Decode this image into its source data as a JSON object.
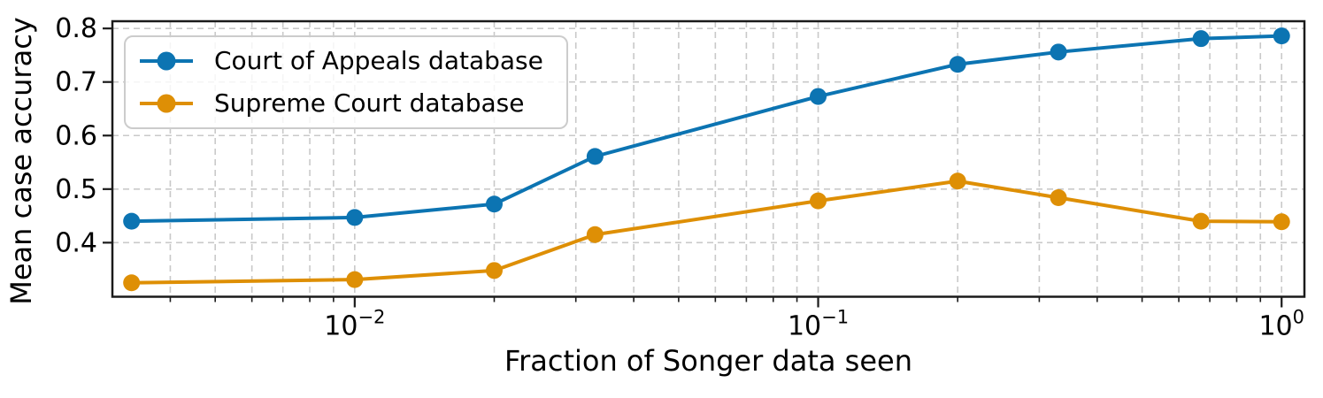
{
  "chart_data": {
    "type": "line",
    "title": "",
    "xlabel": "Fraction of Songer data seen",
    "ylabel": "Mean case accuracy",
    "x_scale": "log",
    "xlim": [
      0.003,
      1.12
    ],
    "ylim": [
      0.299,
      0.8135
    ],
    "grid": "both",
    "grid_color": "#c9c9c9",
    "axis_color": "#1a1a1a",
    "legend_position": "upper left",
    "x": [
      0.0033,
      0.01,
      0.02,
      0.033,
      0.1,
      0.2,
      0.33,
      0.67,
      1.0
    ],
    "series": [
      {
        "name": "Court of Appeals database",
        "color": "#0c74b2",
        "values": [
          0.44,
          0.447,
          0.472,
          0.561,
          0.673,
          0.733,
          0.756,
          0.781,
          0.786
        ]
      },
      {
        "name": "Supreme Court database",
        "color": "#de8f05",
        "values": [
          0.325,
          0.331,
          0.348,
          0.415,
          0.478,
          0.515,
          0.484,
          0.44,
          0.439
        ]
      }
    ],
    "y_ticks": [
      {
        "value": 0.4,
        "label": "0.4"
      },
      {
        "value": 0.5,
        "label": "0.5"
      },
      {
        "value": 0.6,
        "label": "0.6"
      },
      {
        "value": 0.7,
        "label": "0.7"
      },
      {
        "value": 0.8,
        "label": "0.8"
      }
    ],
    "x_major_ticks": [
      {
        "value": 0.01,
        "base": "10",
        "exp": "−2"
      },
      {
        "value": 0.1,
        "base": "10",
        "exp": "−1"
      },
      {
        "value": 1.0,
        "base": "10",
        "exp": "0"
      }
    ]
  }
}
